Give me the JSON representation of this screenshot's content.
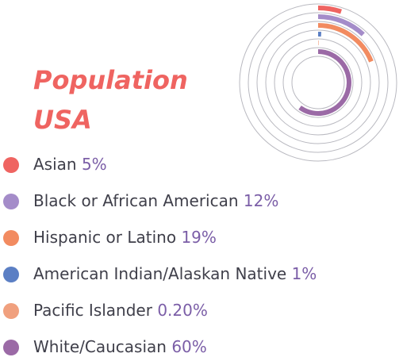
{
  "chart_data": {
    "type": "radial-bar",
    "title": "Population USA",
    "categories": [
      "Asian",
      "Black or African American",
      "Hispanic or Latino",
      "American Indian/Alaskan Native",
      "Pacific Islander",
      "White/Caucasian"
    ],
    "values": [
      5,
      12,
      19,
      1,
      0.2,
      60
    ],
    "value_labels": [
      "5%",
      "12%",
      "19%",
      "1%",
      "0.20%",
      "60%"
    ],
    "colors": [
      "#ef6461",
      "#a48cc9",
      "#f28b60",
      "#5b7fc4",
      "#f0a07e",
      "#9b6aa6"
    ],
    "ylim": [
      0,
      100
    ]
  }
}
